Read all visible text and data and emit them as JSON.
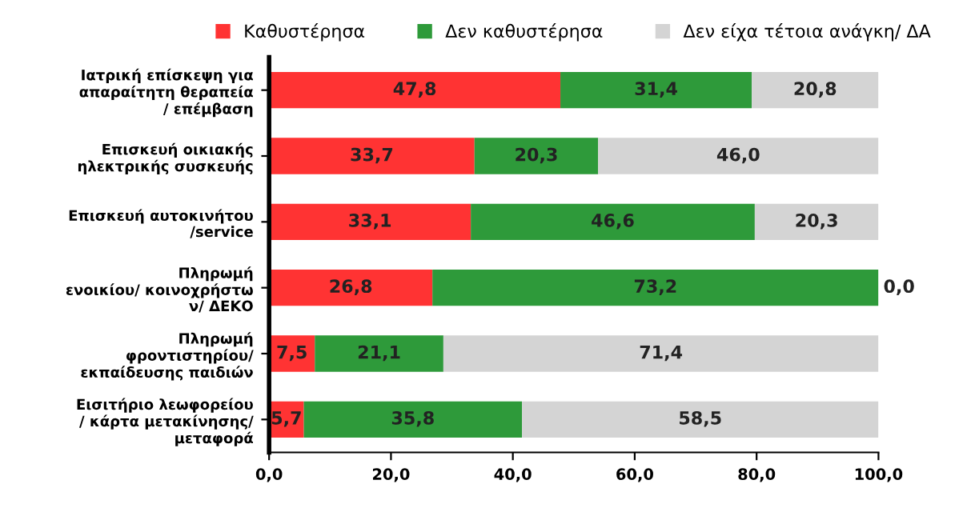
{
  "chart_data": {
    "type": "bar",
    "orientation": "horizontal",
    "stacked": true,
    "legend": "top",
    "categories": [
      "Ιατρική επίσκεψη για\nαπαραίτητη θεραπεία\n/ επέμβαση",
      "Επισκευή οικιακής\nηλεκτρικής συσκευής",
      "Επισκευή αυτοκινήτου\n/service",
      "Πληρωμή\nενοικίου/ κοινοχρήστω\nν/ ΔΕΚΟ",
      "Πληρωμή\nφροντιστηρίου/\nεκπαίδευσης παιδιών",
      "Εισιτήριο λεωφορείου\n/ κάρτα μετακίνησης/\nμεταφορά"
    ],
    "series": [
      {
        "name": "Καθυστέρησα",
        "color": "#ff3333",
        "values": [
          47.8,
          33.7,
          33.1,
          26.8,
          7.5,
          5.7
        ],
        "value_labels": [
          "47,8",
          "33,7",
          "33,1",
          "26,8",
          "7,5",
          "5,7"
        ]
      },
      {
        "name": "Δεν καθυστέρησα",
        "color": "#2e9a3a",
        "values": [
          31.4,
          20.3,
          46.6,
          73.2,
          21.1,
          35.8
        ],
        "value_labels": [
          "31,4",
          "20,3",
          "46,6",
          "73,2",
          "21,1",
          "35,8"
        ]
      },
      {
        "name": "Δεν είχα τέτοια ανάγκη/ ΔΑ",
        "color": "#d4d4d4",
        "values": [
          20.8,
          46.0,
          20.3,
          0.0,
          71.4,
          58.5
        ],
        "value_labels": [
          "20,8",
          "46,0",
          "20,3",
          "0,0",
          "71,4",
          "58,5"
        ]
      }
    ],
    "xlim": [
      0,
      100
    ],
    "xticks": [
      {
        "value": 0,
        "label": "0,0"
      },
      {
        "value": 20,
        "label": "20,0"
      },
      {
        "value": 40,
        "label": "40,0"
      },
      {
        "value": 60,
        "label": "60,0"
      },
      {
        "value": 80,
        "label": "80,0"
      },
      {
        "value": 100,
        "label": "100,0"
      }
    ],
    "grid": false
  }
}
